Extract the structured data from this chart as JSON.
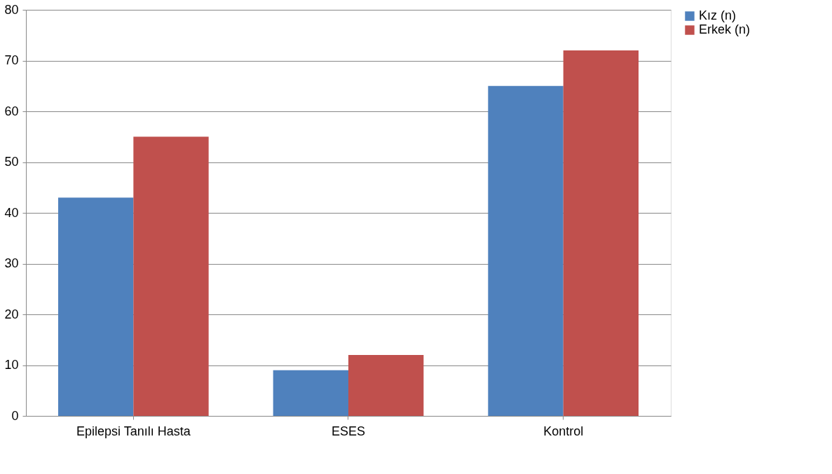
{
  "chart_data": {
    "type": "bar",
    "categories": [
      "Epilepsi Tanılı Hasta",
      "ESES",
      "Kontrol"
    ],
    "series": [
      {
        "name": "Kız (n)",
        "color": "#4f81bd",
        "values": [
          43,
          9,
          65
        ]
      },
      {
        "name": "Erkek (n)",
        "color": "#c0504d",
        "values": [
          55,
          12,
          72
        ]
      }
    ],
    "ylim": [
      0,
      80
    ],
    "yticks": [
      0,
      10,
      20,
      30,
      40,
      50,
      60,
      70,
      80
    ],
    "grid": "y",
    "legend": "right"
  }
}
